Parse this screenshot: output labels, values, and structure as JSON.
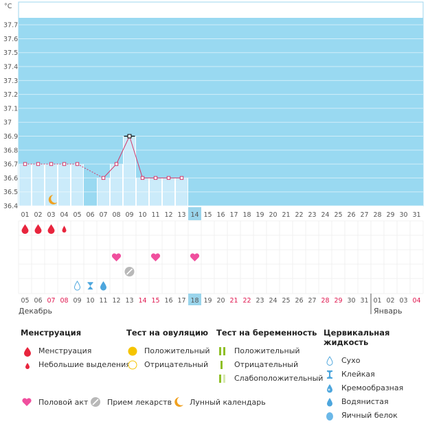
{
  "chart_data": {
    "type": "line",
    "y_unit": "°C",
    "y_ticks": [
      "37.7",
      "37.6",
      "37.5",
      "37.4",
      "37.3",
      "37.2",
      "37.1",
      "37",
      "36.9",
      "36.8",
      "36.7",
      "36.6",
      "36.5",
      "36.4"
    ],
    "ylim": [
      36.4,
      37.75
    ],
    "x_days": [
      "01",
      "02",
      "03",
      "04",
      "05",
      "06",
      "07",
      "08",
      "09",
      "10",
      "11",
      "12",
      "13",
      "14",
      "15",
      "16",
      "17",
      "18",
      "19",
      "20",
      "21",
      "22",
      "23",
      "24",
      "25",
      "26",
      "27",
      "28",
      "29",
      "30",
      "31"
    ],
    "current_day_index": 13,
    "temperature_values": [
      36.7,
      36.7,
      36.7,
      36.7,
      36.7,
      null,
      36.6,
      36.7,
      36.9,
      36.6,
      36.6,
      36.6,
      36.6,
      null,
      null,
      null,
      null,
      null,
      null,
      null,
      null,
      null,
      null,
      null,
      null,
      null,
      null,
      null,
      null,
      null,
      null
    ],
    "peak_index": 8,
    "moon_day_index": 2,
    "menstruation": [
      {
        "day_index": 0,
        "kind": "full"
      },
      {
        "day_index": 1,
        "kind": "full"
      },
      {
        "day_index": 2,
        "kind": "full"
      },
      {
        "day_index": 3,
        "kind": "light"
      }
    ],
    "intercourse_day_indices": [
      7,
      10,
      13
    ],
    "medication_day_indices": [
      8
    ],
    "cervical_fluid": [
      {
        "day_index": 4,
        "kind": "dry"
      },
      {
        "day_index": 5,
        "kind": "sticky"
      },
      {
        "day_index": 6,
        "kind": "watery"
      }
    ],
    "calendar_dates": [
      "05",
      "06",
      "07",
      "08",
      "09",
      "10",
      "11",
      "12",
      "13",
      "14",
      "15",
      "16",
      "17",
      "18",
      "19",
      "20",
      "21",
      "22",
      "23",
      "24",
      "25",
      "26",
      "27",
      "28",
      "29",
      "30",
      "31",
      "01",
      "02",
      "03",
      "04"
    ],
    "calendar_red_indices": [
      2,
      3,
      9,
      10,
      16,
      17,
      23,
      24,
      30
    ],
    "calendar_current_index": 13,
    "month_break_index": 27,
    "months": [
      "Декабрь",
      "Январь"
    ],
    "colors": {
      "area": "#99d9f1",
      "bar": "#cbebfa",
      "line": "#d2386a",
      "current": "#9ad5ec",
      "red_date": "#e0174f",
      "menstruation": "#e8253d",
      "intercourse": "#f04f9e",
      "medication": "#b8b8b8",
      "moon": "#f0a01e",
      "ovulation_positive": "#f5c400",
      "pregnancy_green": "#8fbf26",
      "cervical_blue": "#4da6dd"
    }
  },
  "legend": {
    "menstruation": {
      "title": "Менструация",
      "items": [
        {
          "label": "Менструация",
          "icon": "drop-icon"
        },
        {
          "label": "Небольшие выделения",
          "icon": "small-drop-icon"
        }
      ]
    },
    "ovulation": {
      "title": "Тест на овуляцию",
      "items": [
        {
          "label": "Положительный",
          "icon": "filled-circle-icon"
        },
        {
          "label": "Отрицательный",
          "icon": "empty-circle-icon"
        }
      ]
    },
    "pregnancy": {
      "title": "Тест на беременность",
      "items": [
        {
          "label": "Положительный",
          "icon": "two-lines-icon"
        },
        {
          "label": "Отрицательный",
          "icon": "one-line-icon"
        },
        {
          "label": "Слабоположительный",
          "icon": "faint-lines-icon"
        }
      ]
    },
    "cervical": {
      "title": "Цервикальная жидкость",
      "items": [
        {
          "label": "Сухо",
          "icon": "dry-icon"
        },
        {
          "label": "Клейкая",
          "icon": "sticky-icon"
        },
        {
          "label": "Кремообразная",
          "icon": "creamy-icon"
        },
        {
          "label": "Водянистая",
          "icon": "watery-icon"
        },
        {
          "label": "Яичный белок",
          "icon": "eggwhite-icon"
        }
      ]
    },
    "bottom": [
      {
        "label": "Половой акт",
        "icon": "heart-icon"
      },
      {
        "label": "Прием лекарств",
        "icon": "pill-icon"
      },
      {
        "label": "Лунный календарь",
        "icon": "moon-icon"
      }
    ]
  }
}
